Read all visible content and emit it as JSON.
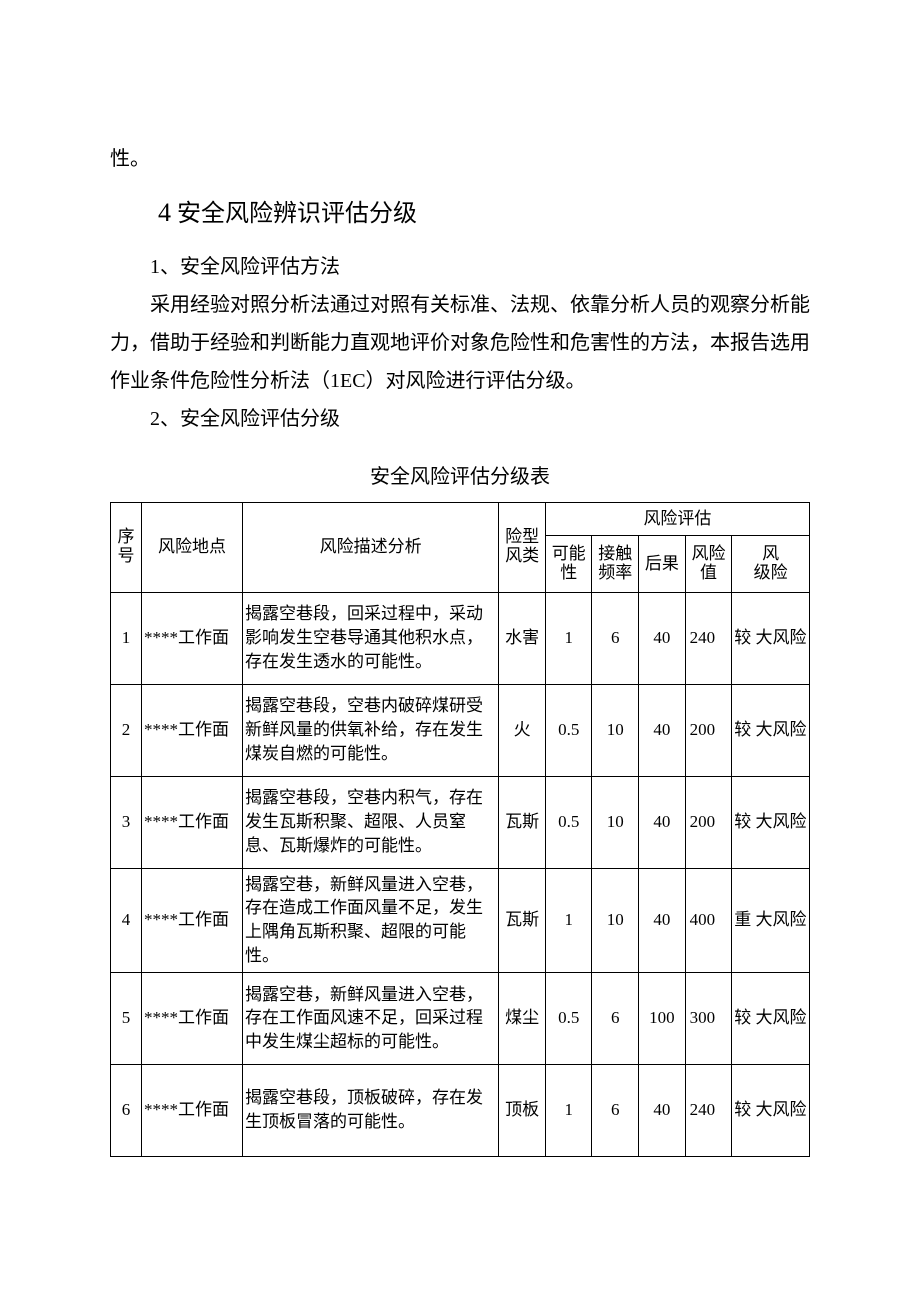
{
  "intro_tail": "性。",
  "section4": {
    "number": "4",
    "title": "安全风险辨识评估分级",
    "sub1": "1、安全风险评估方法",
    "para1": "采用经验对照分析法通过对照有关标准、法规、依靠分析人员的观察分析能力，借助于经验和判断能力直观地评价对象危险性和危害性的方法，本报告选用作业条件危险性分析法（1EC）对风险进行评估分级。",
    "sub2": "2、安全风险评估分级",
    "table_title": "安全风险评估分级表"
  },
  "table": {
    "headers": {
      "seq": "序号",
      "location": "风险地点",
      "description": "风险描述分析",
      "type": "险型风类",
      "assessment": "风险评估",
      "possibility": "可能性",
      "frequency": "接触频率",
      "consequence": "后果",
      "value": "风险值",
      "level_a": "风",
      "level_b": "级险"
    },
    "rows": [
      {
        "seq": "1",
        "location": "****工作面",
        "description": "揭露空巷段，回采过程中，采动影响发生空巷导通其他积水点，存在发生透水的可能性。",
        "type": "水害",
        "possibility": "1",
        "frequency": "6",
        "consequence": "40",
        "value": "240",
        "level": "较 大风险"
      },
      {
        "seq": "2",
        "location": "****工作面",
        "description": "揭露空巷段，空巷内破碎煤研受新鲜风量的供氧补给，存在发生煤炭自燃的可能性。",
        "type": "火",
        "possibility": "0.5",
        "frequency": "10",
        "consequence": "40",
        "value": "200",
        "level": "较 大风险"
      },
      {
        "seq": "3",
        "location": "****工作面",
        "description": "揭露空巷段，空巷内积气，存在发生瓦斯积聚、超限、人员窒息、瓦斯爆炸的可能性。",
        "type": "瓦斯",
        "possibility": "0.5",
        "frequency": "10",
        "consequence": "40",
        "value": "200",
        "level": "较 大风险"
      },
      {
        "seq": "4",
        "location": "****工作面",
        "description": "揭露空巷，新鲜风量进入空巷，存在造成工作面风量不足，发生上隅角瓦斯积聚、超限的可能性。",
        "type": "瓦斯",
        "possibility": "1",
        "frequency": "10",
        "consequence": "40",
        "value": "400",
        "level": "重 大风险"
      },
      {
        "seq": "5",
        "location": "****工作面",
        "description": "揭露空巷，新鲜风量进入空巷，存在工作面风速不足，回采过程中发生煤尘超标的可能性。",
        "type": "煤尘",
        "possibility": "0.5",
        "frequency": "6",
        "consequence": "100",
        "value": "300",
        "level": "较 大风险"
      },
      {
        "seq": "6",
        "location": "****工作面",
        "description": "揭露空巷段，顶板破碎，存在发生顶板冒落的可能性。",
        "type": "顶板",
        "possibility": "1",
        "frequency": "6",
        "consequence": "40",
        "value": "240",
        "level": "较 大风险"
      }
    ]
  }
}
